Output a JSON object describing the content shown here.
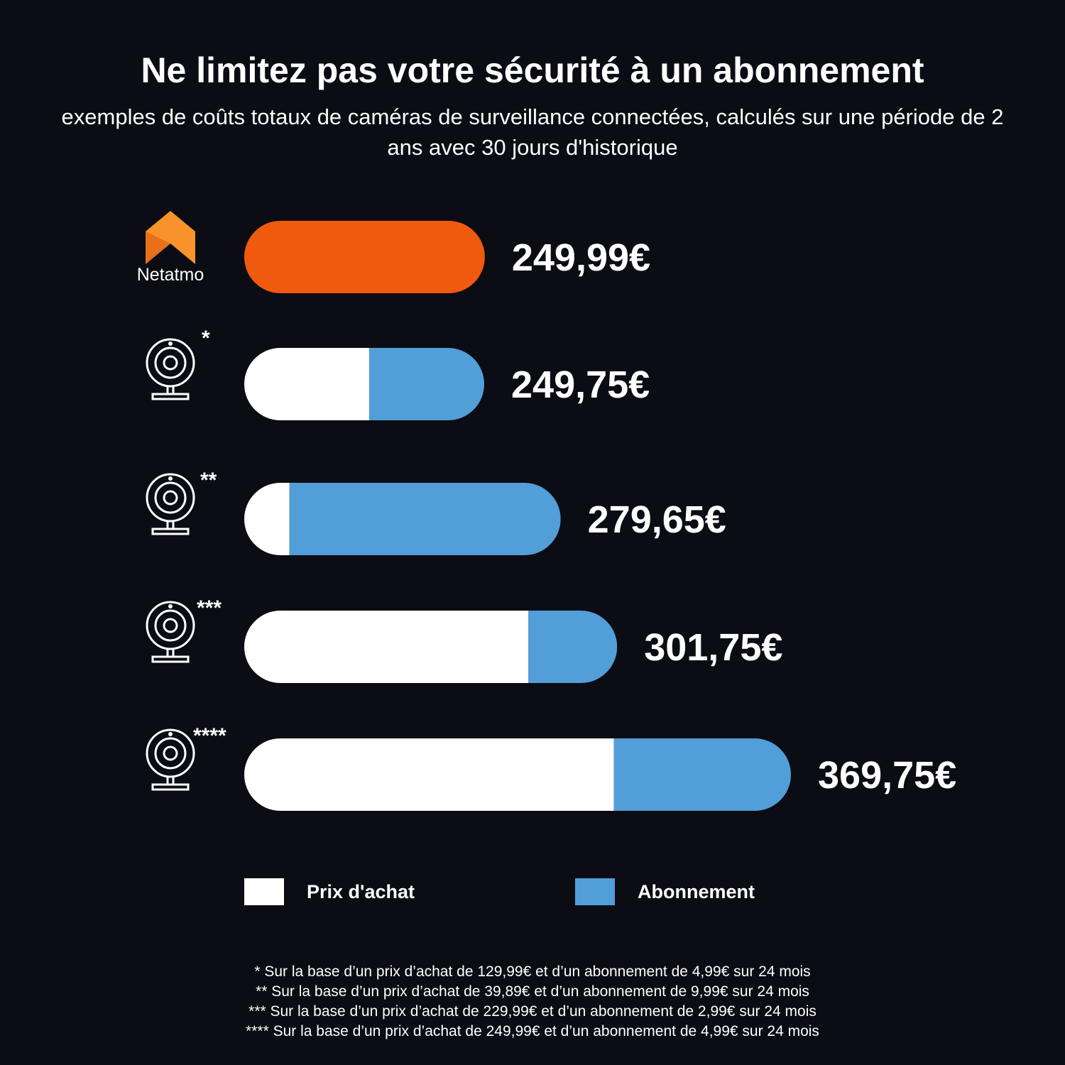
{
  "title": "Ne limitez pas votre sécurité à un abonnement",
  "subtitle": "exemples de coûts totaux  de caméras de surveillance connectées, calculés sur une période de 2 ans avec 30 jours d'historique",
  "colors": {
    "background": "#0b0c14",
    "netatmo": "#ef5a0e",
    "purchase": "#ffffff",
    "subscription": "#529ed8"
  },
  "chart_data": {
    "type": "bar",
    "orientation": "horizontal-stacked",
    "categories": [
      "Netatmo",
      "*",
      "**",
      "***",
      "****"
    ],
    "series": [
      {
        "name": "Prix d'achat",
        "values": [
          249.99,
          129.99,
          39.89,
          229.99,
          249.99
        ]
      },
      {
        "name": "Abonnement",
        "values": [
          0,
          119.76,
          239.76,
          71.76,
          119.76
        ]
      }
    ],
    "totals": [
      249.99,
      249.75,
      279.65,
      301.75,
      369.75
    ],
    "labels": [
      "249,99€",
      "249,75€",
      "279,65€",
      "301,75€",
      "369,75€"
    ],
    "icons": [
      "netatmo-logo",
      "webcam-icon",
      "webcam-icon",
      "webcam-icon",
      "webcam-icon"
    ],
    "legend_position": "bottom"
  },
  "brand": "Netatmo",
  "legend": [
    {
      "label": "Prix d'achat",
      "color": "#ffffff"
    },
    {
      "label": "Abonnement",
      "color": "#529ed8"
    }
  ],
  "footnotes": [
    "* Sur la base d’un prix d’achat de 129,99€ et d’un abonnement de 4,99€ sur 24 mois",
    "** Sur la base d’un prix d’achat de 39,89€ et d’un abonnement de 9,99€ sur 24 mois",
    "*** Sur la base d’un prix d’achat de 229,99€ et d’un abonnement de 2,99€ sur 24 mois",
    "**** Sur la base d’un prix d’achat de 249,99€ et d’un abonnement de 4,99€ sur 24 mois"
  ]
}
